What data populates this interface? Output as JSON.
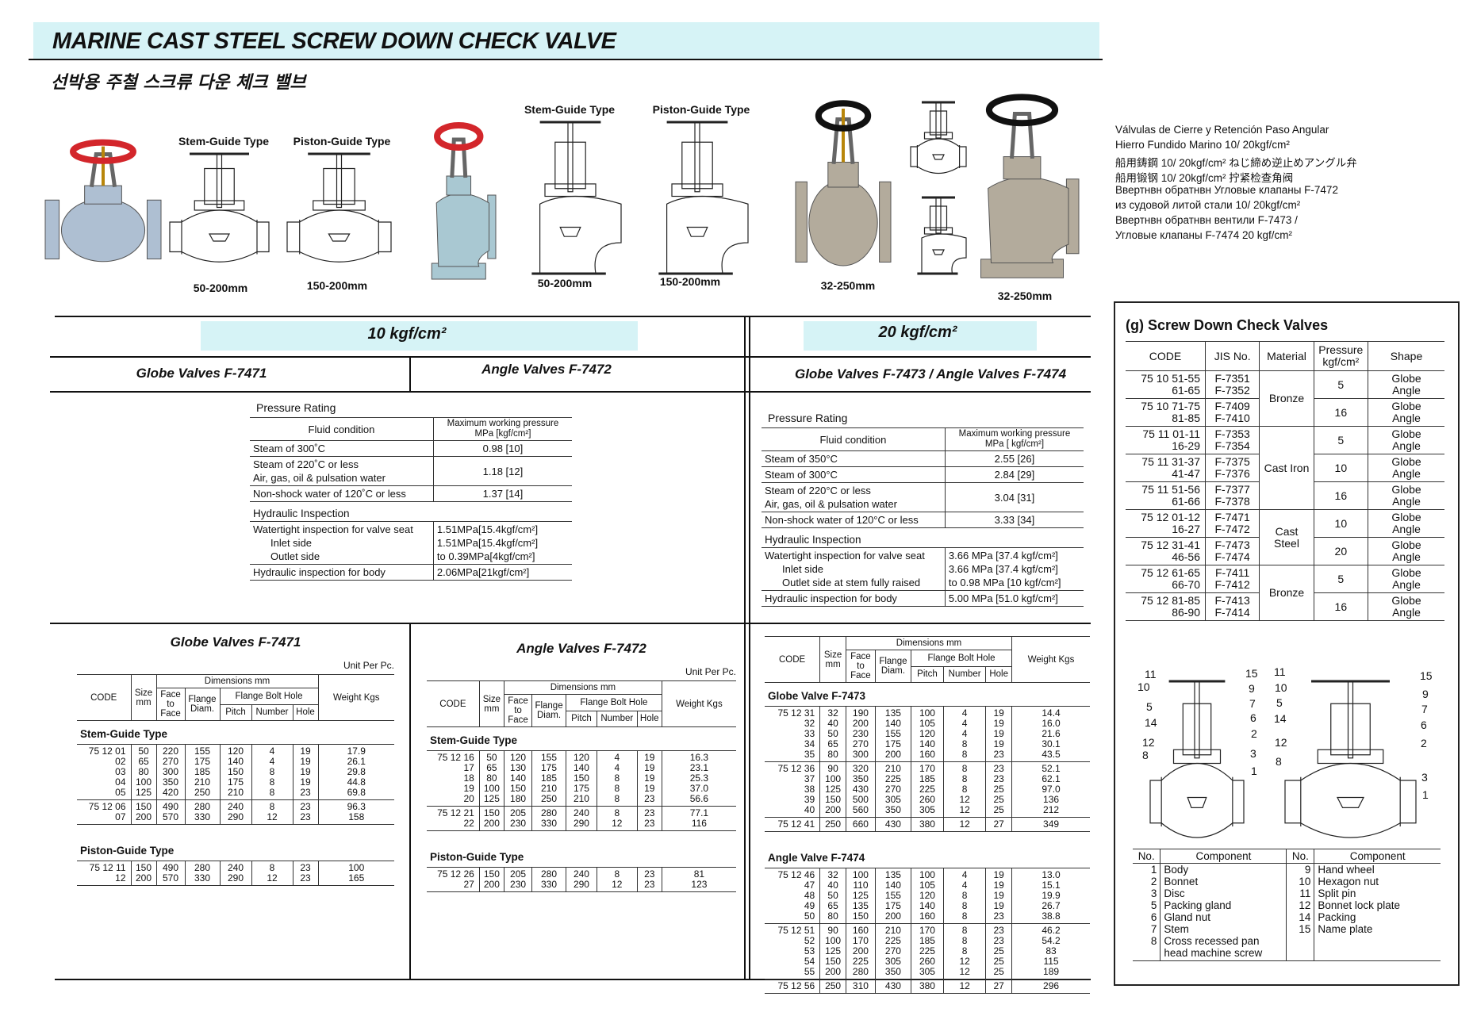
{
  "header": {
    "title": "MARINE CAST STEEL SCREW DOWN CHECK VALVE",
    "subtitle": "선박용 주철 스크류 다운 체크 밸브"
  },
  "image_labels": [
    "Stem-Guide Type",
    "Piston-Guide Type",
    "50-200mm",
    "150-200mm",
    "Stem-Guide Type",
    "Piston-Guide Type",
    "50-200mm",
    "150-200mm",
    "32-250mm",
    "32-250mm"
  ],
  "translations": [
    "Válvulas de Cierre y Retención Paso Angular",
    "Hierro Fundido Marino 10/ 20kgf/cm²",
    "船用鋳鋼 10/ 20kgf/cm² ねじ締め逆止めアングル弁",
    "船用锻钢 10/ 20kgf/cm² 拧紧检查角阀",
    "Ввертнвн обратнвн Угловые клапаны F-7472",
    "из судовой литой стали 10/ 20kgf/cm²",
    "Ввертнвн обратнвн вентили F-7473 /",
    "Угловые клапаны F-7474 20 kgf/cm²"
  ],
  "sections": {
    "pressure_10": "10 kgf/cm²",
    "pressure_20": "20 kgf/cm²",
    "globe_10": "Globe Valves F-7471",
    "angle_10": "Angle Valves F-7472",
    "valves_20": "Globe Valves F-7473 / Angle Valves F-7474"
  },
  "pressure_10": {
    "title": "Pressure Rating",
    "head": [
      "Fluid condition",
      "Maximum working pressure MPa [kgf/cm²]"
    ],
    "rows": [
      {
        "conditions": [
          "Steam of 300˚C"
        ],
        "value": "0.98 [10]"
      },
      {
        "conditions": [
          "Steam of 220˚C or less",
          "Air, gas, oil & pulsation water"
        ],
        "value": "1.18 [12]"
      },
      {
        "conditions": [
          "Non-shock water of 120˚C or less"
        ],
        "value": "1.37 [14]"
      }
    ],
    "hydraulic": {
      "title": "Hydraulic Inspection",
      "rows": [
        {
          "labels": [
            "Watertight inspection for valve seat",
            "Inlet side",
            "Outlet side"
          ],
          "values": [
            "1.51MPa[15.4kgf/cm²]",
            "1.51MPa[15.4kgf/cm²]",
            "to 0.39MPa[4kgf/cm²]"
          ]
        },
        {
          "labels": [
            "Hydraulic inspection for body"
          ],
          "values": [
            "2.06MPa[21kgf/cm²]"
          ]
        }
      ]
    }
  },
  "pressure_20": {
    "title": "Pressure Rating",
    "head": [
      "Fluid condition",
      "Maximum working pressure MPa [ kgf/cm²]"
    ],
    "rows": [
      {
        "conditions": [
          "Steam of 350°C"
        ],
        "value": "2.55 [26]"
      },
      {
        "conditions": [
          "Steam of 300°C"
        ],
        "value": "2.84 [29]"
      },
      {
        "conditions": [
          "Steam of 220°C or less",
          "Air, gas, oil & pulsation water"
        ],
        "value": "3.04 [31]"
      },
      {
        "conditions": [
          "Non-shock water of 120°C or less"
        ],
        "value": "3.33 [34]"
      }
    ],
    "hydraulic": {
      "title": "Hydraulic Inspection",
      "rows": [
        {
          "labels": [
            "Watertight inspection for valve seat",
            "Inlet side",
            "Outlet side at stem fully raised"
          ],
          "values": [
            "3.66 MPa [37.4 kgf/cm²]",
            "3.66 MPa [37.4 kgf/cm²]",
            "to 0.98 MPa [10 kgf/cm²]"
          ]
        },
        {
          "labels": [
            "Hydraulic inspection for body"
          ],
          "values": [
            "5.00 MPa [51.0 kgf/cm²]"
          ]
        }
      ]
    }
  },
  "globe_f7471": {
    "title": "Globe Valves F-7471",
    "unit": "Unit Per Pc.",
    "head": {
      "code": "CODE",
      "size": "Size mm",
      "dimensions": "Dimensions mm",
      "face": "Face to Face",
      "flange": "Flange Diam.",
      "bolt": "Flange Bolt Hole",
      "pitch": "Pitch",
      "number": "Number",
      "hole": "Hole",
      "weight": "Weight Kgs"
    },
    "groups": [
      {
        "name": "Stem-Guide Type",
        "blocks": [
          [
            [
              "75 12 01",
              "50",
              "220",
              "155",
              "120",
              "4",
              "19",
              "17.9"
            ],
            [
              "02",
              "65",
              "270",
              "175",
              "140",
              "4",
              "19",
              "26.1"
            ],
            [
              "03",
              "80",
              "300",
              "185",
              "150",
              "8",
              "19",
              "29.8"
            ],
            [
              "04",
              "100",
              "350",
              "210",
              "175",
              "8",
              "19",
              "44.8"
            ],
            [
              "05",
              "125",
              "420",
              "250",
              "210",
              "8",
              "23",
              "69.8"
            ]
          ],
          [
            [
              "75 12 06",
              "150",
              "490",
              "280",
              "240",
              "8",
              "23",
              "96.3"
            ],
            [
              "07",
              "200",
              "570",
              "330",
              "290",
              "12",
              "23",
              "158"
            ]
          ]
        ]
      },
      {
        "name": "Piston-Guide Type",
        "blocks": [
          [
            [
              "75 12 11",
              "150",
              "490",
              "280",
              "240",
              "8",
              "23",
              "100"
            ],
            [
              "12",
              "200",
              "570",
              "330",
              "290",
              "12",
              "23",
              "165"
            ]
          ]
        ]
      }
    ]
  },
  "angle_f7472": {
    "title": "Angle Valves F-7472",
    "unit": "Unit Per Pc.",
    "head": {
      "code": "CODE",
      "size": "Size mm",
      "dimensions": "Dimensions mm",
      "face": "Face to Face",
      "flange": "Flange Diam.",
      "bolt": "Flange Bolt Hole",
      "pitch": "Pitch",
      "number": "Number",
      "hole": "Hole",
      "weight": "Weight Kgs"
    },
    "groups": [
      {
        "name": "Stem-Guide Type",
        "blocks": [
          [
            [
              "75 12 16",
              "50",
              "120",
              "155",
              "120",
              "4",
              "19",
              "16.3"
            ],
            [
              "17",
              "65",
              "130",
              "175",
              "140",
              "4",
              "19",
              "23.1"
            ],
            [
              "18",
              "80",
              "140",
              "185",
              "150",
              "8",
              "19",
              "25.3"
            ],
            [
              "19",
              "100",
              "150",
              "210",
              "175",
              "8",
              "19",
              "37.0"
            ],
            [
              "20",
              "125",
              "180",
              "250",
              "210",
              "8",
              "23",
              "56.6"
            ]
          ],
          [
            [
              "75 12 21",
              "150",
              "205",
              "280",
              "240",
              "8",
              "23",
              "77.1"
            ],
            [
              "22",
              "200",
              "230",
              "330",
              "290",
              "12",
              "23",
              "116"
            ]
          ]
        ]
      },
      {
        "name": "Piston-Guide Type",
        "blocks": [
          [
            [
              "75 12 26",
              "150",
              "205",
              "280",
              "240",
              "8",
              "23",
              "81"
            ],
            [
              "27",
              "200",
              "230",
              "330",
              "290",
              "12",
              "23",
              "123"
            ]
          ]
        ]
      }
    ]
  },
  "f7473_f7474": {
    "head": {
      "code": "CODE",
      "size": "Size mm",
      "dimensions": "Dimensions mm",
      "face": "Face to Face",
      "flange": "Flange Diam.",
      "bolt": "Flange Bolt Hole",
      "pitch": "Pitch",
      "number": "Number",
      "hole": "Hole",
      "weight": "Weight Kgs"
    },
    "groups": [
      {
        "name": "Globe Valve F-7473",
        "blocks": [
          [
            [
              "75 12 31",
              "32",
              "190",
              "135",
              "100",
              "4",
              "19",
              "14.4"
            ],
            [
              "32",
              "40",
              "200",
              "140",
              "105",
              "4",
              "19",
              "16.0"
            ],
            [
              "33",
              "50",
              "230",
              "155",
              "120",
              "4",
              "19",
              "21.6"
            ],
            [
              "34",
              "65",
              "270",
              "175",
              "140",
              "8",
              "19",
              "30.1"
            ],
            [
              "35",
              "80",
              "300",
              "200",
              "160",
              "8",
              "23",
              "43.5"
            ]
          ],
          [
            [
              "75 12 36",
              "90",
              "320",
              "210",
              "170",
              "8",
              "23",
              "52.1"
            ],
            [
              "37",
              "100",
              "350",
              "225",
              "185",
              "8",
              "23",
              "62.1"
            ],
            [
              "38",
              "125",
              "430",
              "270",
              "225",
              "8",
              "25",
              "97.0"
            ],
            [
              "39",
              "150",
              "500",
              "305",
              "260",
              "12",
              "25",
              "136"
            ],
            [
              "40",
              "200",
              "560",
              "350",
              "305",
              "12",
              "25",
              "212"
            ]
          ],
          [
            [
              "75 12 41",
              "250",
              "660",
              "430",
              "380",
              "12",
              "27",
              "349"
            ]
          ]
        ]
      },
      {
        "name": "Angle Valve F-7474",
        "blocks": [
          [
            [
              "75 12 46",
              "32",
              "100",
              "135",
              "100",
              "4",
              "19",
              "13.0"
            ],
            [
              "47",
              "40",
              "110",
              "140",
              "105",
              "4",
              "19",
              "15.1"
            ],
            [
              "48",
              "50",
              "125",
              "155",
              "120",
              "8",
              "19",
              "19.9"
            ],
            [
              "49",
              "65",
              "135",
              "175",
              "140",
              "8",
              "19",
              "26.7"
            ],
            [
              "50",
              "80",
              "150",
              "200",
              "160",
              "8",
              "23",
              "38.8"
            ]
          ],
          [
            [
              "75 12 51",
              "90",
              "160",
              "210",
              "170",
              "8",
              "23",
              "46.2"
            ],
            [
              "52",
              "100",
              "170",
              "225",
              "185",
              "8",
              "23",
              "54.2"
            ],
            [
              "53",
              "125",
              "200",
              "270",
              "225",
              "8",
              "25",
              "83"
            ],
            [
              "54",
              "150",
              "225",
              "305",
              "260",
              "12",
              "25",
              "115"
            ],
            [
              "55",
              "200",
              "280",
              "350",
              "305",
              "12",
              "25",
              "189"
            ]
          ],
          [
            [
              "75 12 56",
              "250",
              "310",
              "430",
              "380",
              "12",
              "27",
              "296"
            ]
          ]
        ]
      }
    ]
  },
  "screw_down": {
    "title": "(g) Screw Down Check Valves",
    "head": [
      "CODE",
      "JIS No.",
      "Material",
      "Pressure kgf/cm²",
      "Shape"
    ],
    "groups": [
      {
        "material": "Bronze",
        "items": [
          {
            "code": [
              "75 10 51-55",
              "61-65"
            ],
            "jis": [
              "F-7351",
              "F-7352"
            ],
            "pressure": "5",
            "shape": [
              "Globe",
              "Angle"
            ]
          },
          {
            "code": [
              "75 10 71-75",
              "81-85"
            ],
            "jis": [
              "F-7409",
              "F-7410"
            ],
            "pressure": "16",
            "shape": [
              "Globe",
              "Angle"
            ]
          }
        ]
      },
      {
        "material": "Cast Iron",
        "items": [
          {
            "code": [
              "75 11 01-11",
              "16-29"
            ],
            "jis": [
              "F-7353",
              "F-7354"
            ],
            "pressure": "5",
            "shape": [
              "Globe",
              "Angle"
            ]
          },
          {
            "code": [
              "75 11 31-37",
              "41-47"
            ],
            "jis": [
              "F-7375",
              "F-7376"
            ],
            "pressure": "10",
            "shape": [
              "Globe",
              "Angle"
            ]
          },
          {
            "code": [
              "75 11 51-56",
              "61-66"
            ],
            "jis": [
              "F-7377",
              "F-7378"
            ],
            "pressure": "16",
            "shape": [
              "Globe",
              "Angle"
            ]
          }
        ]
      },
      {
        "material": "Cast Steel",
        "items": [
          {
            "code": [
              "75 12 01-12",
              "16-27"
            ],
            "jis": [
              "F-7471",
              "F-7472"
            ],
            "pressure": "10",
            "shape": [
              "Globe",
              "Angle"
            ]
          },
          {
            "code": [
              "75 12 31-41",
              "46-56"
            ],
            "jis": [
              "F-7473",
              "F-7474"
            ],
            "pressure": "20",
            "shape": [
              "Globe",
              "Angle"
            ]
          }
        ]
      },
      {
        "material": "Bronze",
        "items": [
          {
            "code": [
              "75 12 61-65",
              "66-70"
            ],
            "jis": [
              "F-7411",
              "F-7412"
            ],
            "pressure": "5",
            "shape": [
              "Globe",
              "Angle"
            ]
          },
          {
            "code": [
              "75 12 81-85",
              "86-90"
            ],
            "jis": [
              "F-7413",
              "F-7414"
            ],
            "pressure": "16",
            "shape": [
              "Globe",
              "Angle"
            ]
          }
        ]
      }
    ]
  },
  "diagram_callouts": {
    "left": [
      "11",
      "15",
      "10",
      "9",
      "5",
      "7",
      "14",
      "6",
      "2",
      "12",
      "8",
      "3",
      "1"
    ],
    "right": [
      "11",
      "15",
      "10",
      "9",
      "5",
      "7",
      "14",
      "6",
      "12",
      "2",
      "8",
      "3",
      "1"
    ]
  },
  "components": {
    "head": [
      "No.",
      "Component",
      "No.",
      "Component"
    ],
    "left": [
      [
        "1",
        "Body"
      ],
      [
        "2",
        "Bonnet"
      ],
      [
        "3",
        "Disc"
      ],
      [
        "5",
        "Packing gland"
      ],
      [
        "6",
        "Gland nut"
      ],
      [
        "7",
        "Stem"
      ],
      [
        "8",
        "Cross recessed pan head machine screw"
      ]
    ],
    "right": [
      [
        "9",
        "Hand wheel"
      ],
      [
        "10",
        "Hexagon nut"
      ],
      [
        "11",
        "Split pin"
      ],
      [
        "12",
        "Bonnet lock plate"
      ],
      [
        "14",
        "Packing"
      ],
      [
        "15",
        "Name plate"
      ]
    ]
  }
}
